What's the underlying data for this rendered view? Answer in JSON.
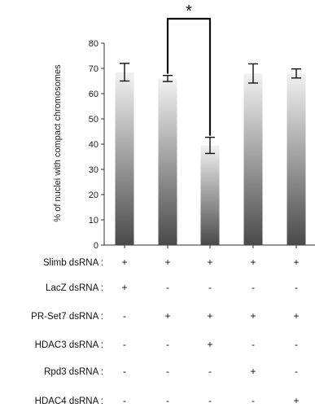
{
  "chart_data": {
    "type": "bar",
    "ylabel": "% of nuclei with compact chromosomes",
    "ylim": [
      0,
      80
    ],
    "yticks": [
      0,
      10,
      20,
      30,
      40,
      50,
      60,
      70,
      80
    ],
    "values": [
      68.5,
      66,
      39.5,
      68,
      68
    ],
    "errors": [
      3.5,
      1.2,
      3.2,
      3.8,
      1.8
    ],
    "significance": {
      "from": 1,
      "to": 2,
      "label": "*"
    },
    "bar_color_top": "#f2f2f2",
    "bar_color_bottom": "#4a4a4a",
    "condition_rows": [
      {
        "label": "Slimb dsRNA :",
        "marks": [
          "+",
          "+",
          "+",
          "+",
          "+"
        ]
      },
      {
        "label": "LacZ dsRNA :",
        "marks": [
          "+",
          "-",
          "-",
          "-",
          "-"
        ]
      },
      {
        "label": "PR-Set7 dsRNA :",
        "marks": [
          "-",
          "+",
          "+",
          "+",
          "+"
        ]
      },
      {
        "label": "HDAC3 dsRNA :",
        "marks": [
          "-",
          "-",
          "+",
          "-",
          "-"
        ]
      },
      {
        "label": "Rpd3 dsRNA :",
        "marks": [
          "-",
          "-",
          "-",
          "+",
          "-"
        ]
      },
      {
        "label": "HDAC4 dsRNA :",
        "marks": [
          "-",
          "-",
          "-",
          "-",
          "+"
        ]
      }
    ]
  }
}
